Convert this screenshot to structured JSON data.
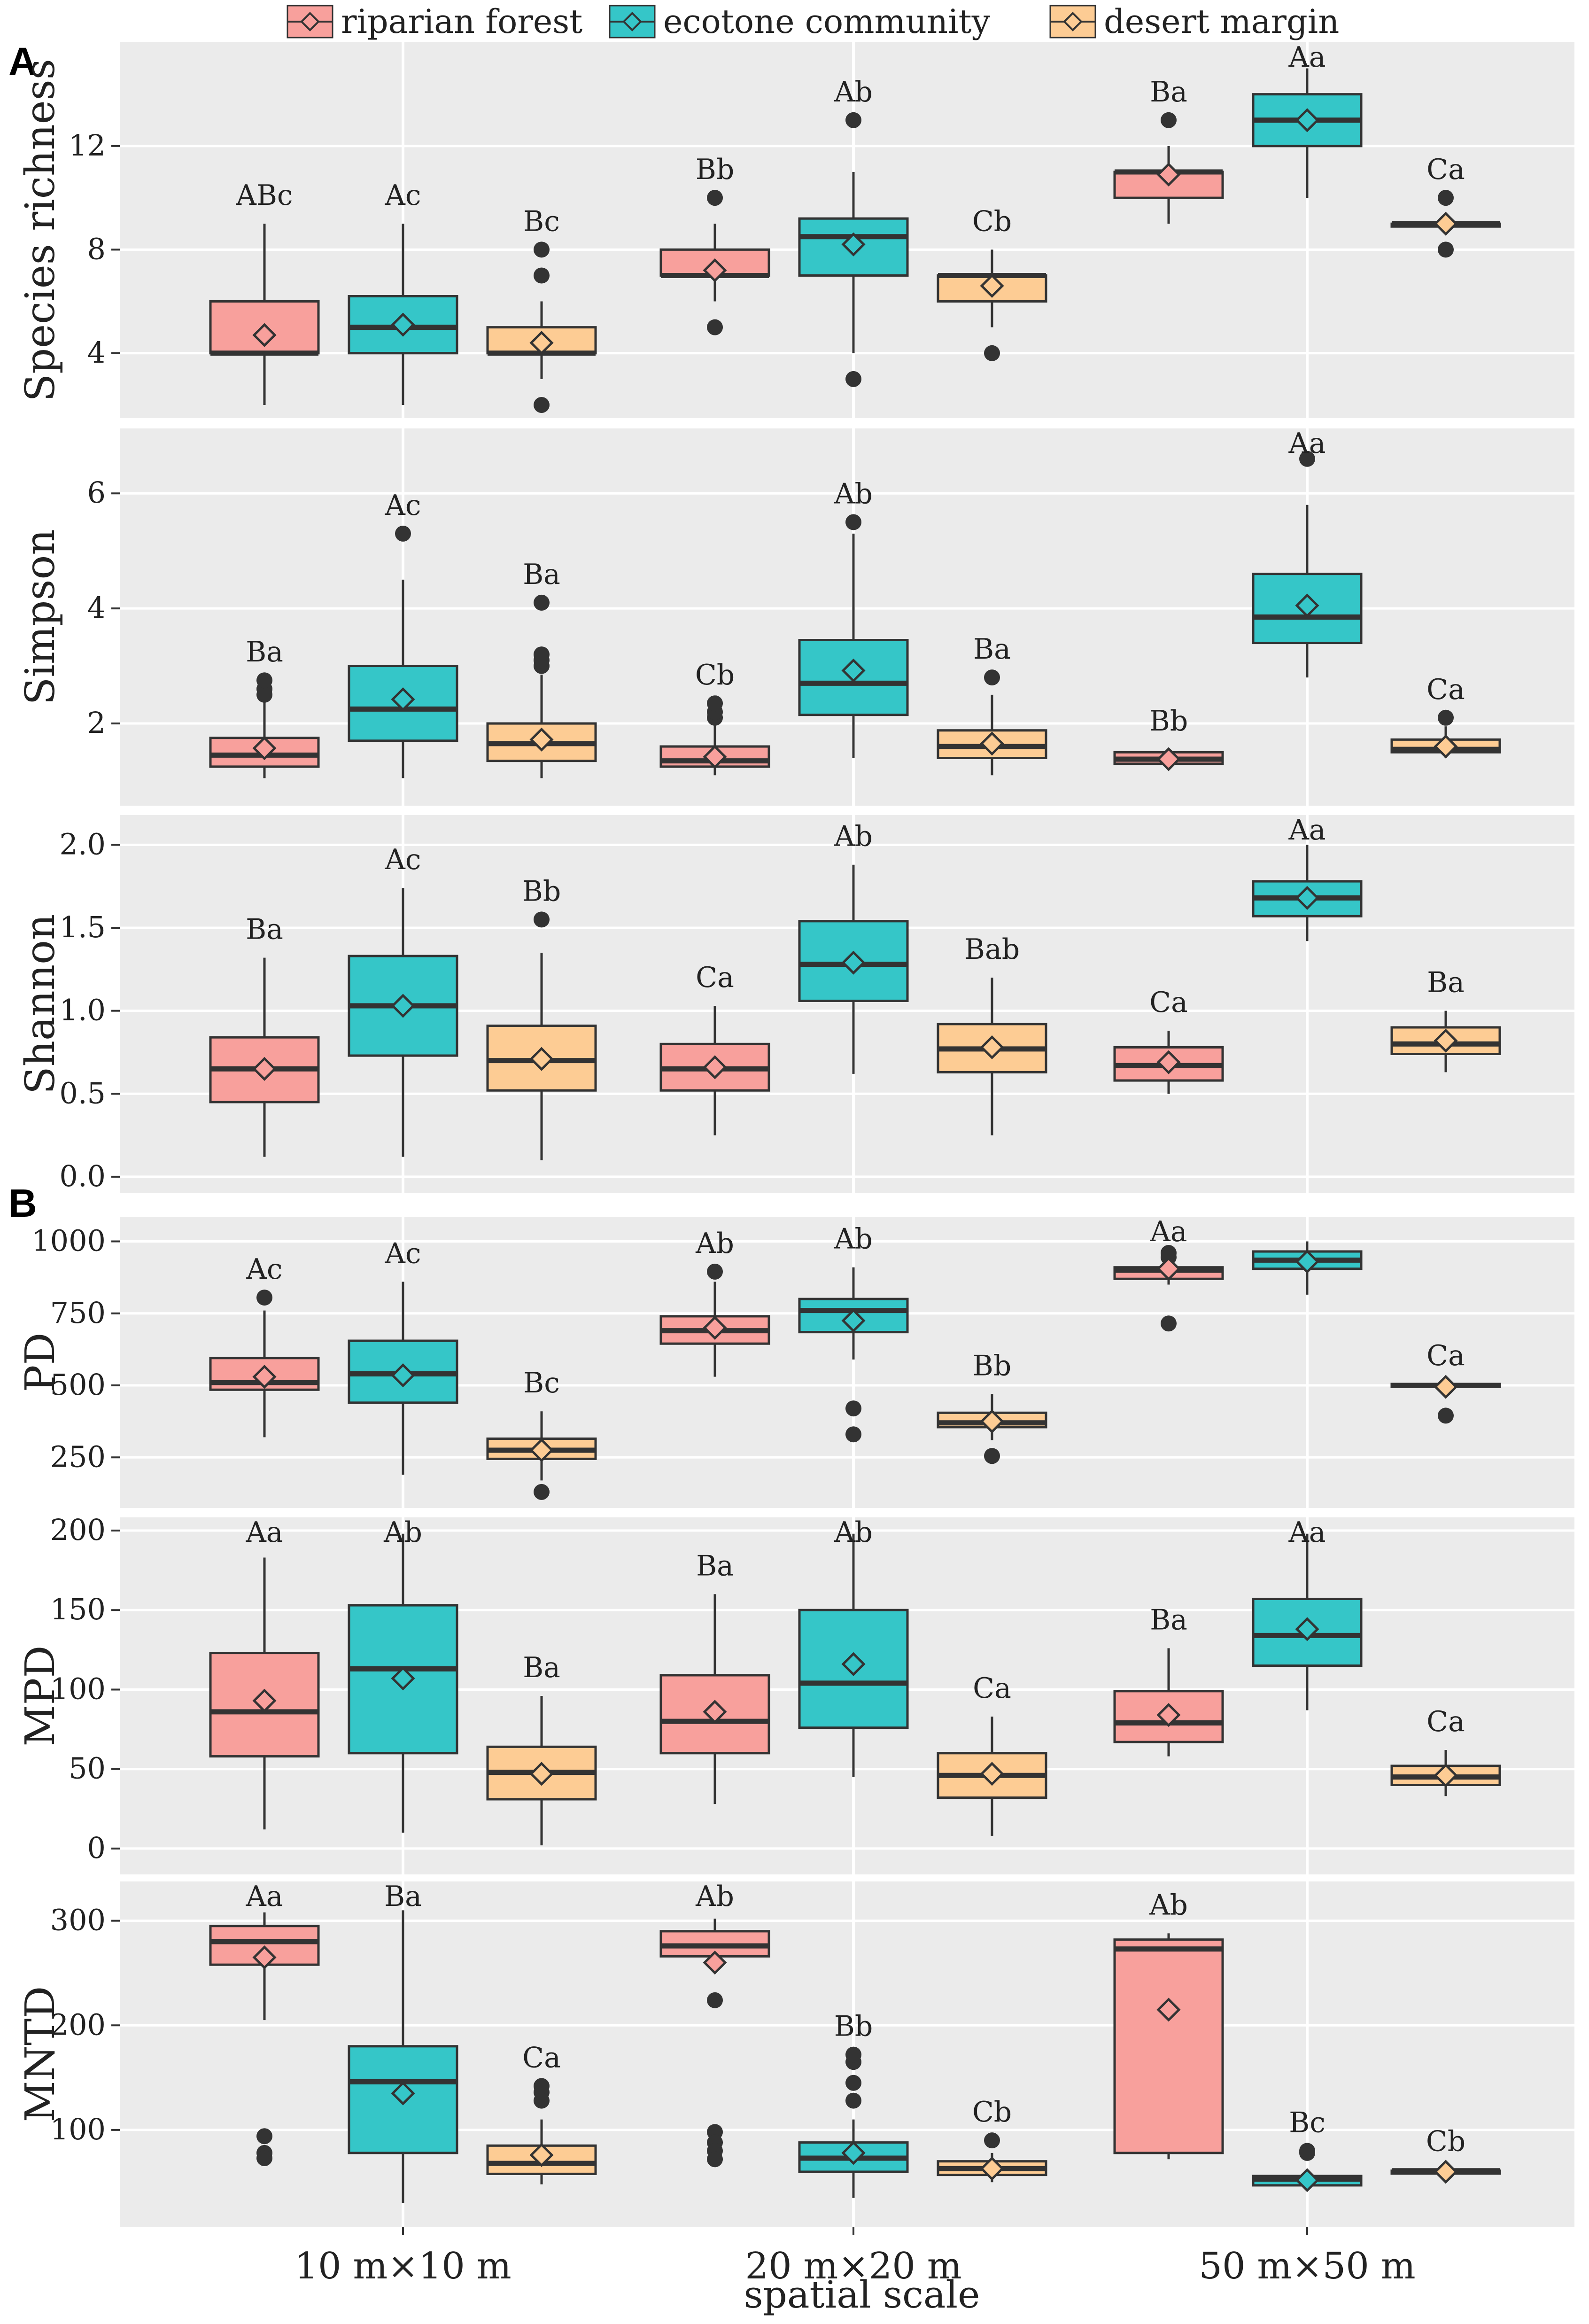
{
  "legend": [
    {
      "name": "riparian forest",
      "color": "#F8A09C"
    },
    {
      "name": "ecotone community",
      "color": "#35C6C8"
    },
    {
      "name": "desert margin",
      "color": "#FDCC94"
    }
  ],
  "panel_labels": [
    "A",
    "B"
  ],
  "xlabel": "spatial scale",
  "chart_data": {
    "type": "box",
    "categories": [
      "10 m×10 m",
      "20 m×20 m",
      "50 m×50 m"
    ],
    "groups": [
      "riparian forest",
      "ecotone community",
      "desert margin"
    ],
    "colors": [
      "#F8A09C",
      "#35C6C8",
      "#FDCC94"
    ],
    "panels": [
      {
        "ylabel": "Species richness",
        "ylim": [
          2,
          15.5
        ],
        "yticks": [
          4,
          8,
          12
        ],
        "ytick_labels": [
          "4",
          "8",
          "12"
        ],
        "boxes": [
          [
            {
              "min": 2,
              "q1": 4,
              "median": 4,
              "q3": 6,
              "max": 9,
              "mean": 4.7,
              "outliers": [],
              "label": "ABc"
            },
            {
              "min": 2,
              "q1": 4,
              "median": 5,
              "q3": 6.2,
              "max": 9,
              "mean": 5.1,
              "outliers": [],
              "label": "Ac"
            },
            {
              "min": 3,
              "q1": 4,
              "median": 4,
              "q3": 5,
              "max": 6,
              "mean": 4.4,
              "outliers": [
                7,
                8,
                2
              ],
              "label": "Bc"
            }
          ],
          [
            {
              "min": 6,
              "q1": 7,
              "median": 7,
              "q3": 8,
              "max": 9,
              "mean": 7.2,
              "outliers": [
                10,
                5
              ],
              "label": "Bb"
            },
            {
              "min": 4,
              "q1": 7,
              "median": 8.5,
              "q3": 9.2,
              "max": 11,
              "mean": 8.2,
              "outliers": [
                13,
                3
              ],
              "label": "Ab"
            },
            {
              "min": 5,
              "q1": 6,
              "median": 7,
              "q3": 7,
              "max": 8,
              "mean": 6.6,
              "outliers": [
                4
              ],
              "label": "Cb"
            }
          ],
          [
            {
              "min": 9,
              "q1": 10,
              "median": 11,
              "q3": 11,
              "max": 12,
              "mean": 10.9,
              "outliers": [
                13
              ],
              "label": "Ba"
            },
            {
              "min": 10,
              "q1": 12,
              "median": 13,
              "q3": 14,
              "max": 15,
              "mean": 13,
              "outliers": [],
              "label": "Aa"
            },
            {
              "min": 9,
              "q1": 9,
              "median": 9,
              "q3": 9,
              "max": 9,
              "mean": 9,
              "outliers": [
                10,
                8
              ],
              "label": "Ca"
            }
          ]
        ]
      },
      {
        "ylabel": "Simpson",
        "ylim": [
          0.8,
          6.9
        ],
        "yticks": [
          2,
          4,
          6
        ],
        "ytick_labels": [
          "2",
          "4",
          "6"
        ],
        "boxes": [
          [
            {
              "min": 1.05,
              "q1": 1.25,
              "median": 1.45,
              "q3": 1.75,
              "max": 2.4,
              "mean": 1.57,
              "outliers": [
                2.5,
                2.6,
                2.75
              ],
              "label": "Ba"
            },
            {
              "min": 1.05,
              "q1": 1.7,
              "median": 2.25,
              "q3": 3.0,
              "max": 4.5,
              "mean": 2.42,
              "outliers": [
                5.3
              ],
              "label": "Ac"
            },
            {
              "min": 1.05,
              "q1": 1.35,
              "median": 1.65,
              "q3": 2.0,
              "max": 2.85,
              "mean": 1.72,
              "outliers": [
                3.0,
                3.1,
                3.2,
                4.1
              ],
              "label": "Ba"
            }
          ],
          [
            {
              "min": 1.1,
              "q1": 1.25,
              "median": 1.35,
              "q3": 1.6,
              "max": 2.0,
              "mean": 1.42,
              "outliers": [
                2.1,
                2.2,
                2.35
              ],
              "label": "Cb"
            },
            {
              "min": 1.4,
              "q1": 2.15,
              "median": 2.7,
              "q3": 3.45,
              "max": 5.3,
              "mean": 2.92,
              "outliers": [
                5.5
              ],
              "label": "Ab"
            },
            {
              "min": 1.1,
              "q1": 1.4,
              "median": 1.6,
              "q3": 1.88,
              "max": 2.5,
              "mean": 1.65,
              "outliers": [
                2.8
              ],
              "label": "Ba"
            }
          ],
          [
            {
              "min": 1.25,
              "q1": 1.3,
              "median": 1.38,
              "q3": 1.5,
              "max": 1.55,
              "mean": 1.38,
              "outliers": [],
              "label": "Bb"
            },
            {
              "min": 2.8,
              "q1": 3.4,
              "median": 3.85,
              "q3": 4.6,
              "max": 5.8,
              "mean": 4.05,
              "outliers": [
                6.6
              ],
              "label": "Aa"
            },
            {
              "min": 1.4,
              "q1": 1.5,
              "median": 1.55,
              "q3": 1.72,
              "max": 1.95,
              "mean": 1.6,
              "outliers": [
                2.1
              ],
              "label": "Ca"
            }
          ]
        ]
      },
      {
        "ylabel": "Shannon",
        "ylim": [
          -0.02,
          2.1
        ],
        "yticks": [
          0.0,
          0.5,
          1.0,
          1.5,
          2.0
        ],
        "ytick_labels": [
          "0.0",
          "0.5",
          "1.0",
          "1.5",
          "2.0"
        ],
        "boxes": [
          [
            {
              "min": 0.12,
              "q1": 0.45,
              "median": 0.65,
              "q3": 0.84,
              "max": 1.32,
              "mean": 0.65,
              "outliers": [],
              "label": "Ba"
            },
            {
              "min": 0.12,
              "q1": 0.73,
              "median": 1.03,
              "q3": 1.33,
              "max": 1.74,
              "mean": 1.03,
              "outliers": [],
              "label": "Ac"
            },
            {
              "min": 0.1,
              "q1": 0.52,
              "median": 0.7,
              "q3": 0.91,
              "max": 1.35,
              "mean": 0.71,
              "outliers": [
                1.55
              ],
              "label": "Bb"
            }
          ],
          [
            {
              "min": 0.25,
              "q1": 0.52,
              "median": 0.65,
              "q3": 0.8,
              "max": 1.03,
              "mean": 0.66,
              "outliers": [],
              "label": "Ca"
            },
            {
              "min": 0.62,
              "q1": 1.06,
              "median": 1.28,
              "q3": 1.54,
              "max": 1.88,
              "mean": 1.29,
              "outliers": [],
              "label": "Ab"
            },
            {
              "min": 0.25,
              "q1": 0.63,
              "median": 0.77,
              "q3": 0.92,
              "max": 1.2,
              "mean": 0.78,
              "outliers": [],
              "label": "Bab"
            }
          ],
          [
            {
              "min": 0.5,
              "q1": 0.58,
              "median": 0.67,
              "q3": 0.78,
              "max": 0.88,
              "mean": 0.69,
              "outliers": [],
              "label": "Ca"
            },
            {
              "min": 1.42,
              "q1": 1.57,
              "median": 1.68,
              "q3": 1.78,
              "max": 2.0,
              "mean": 1.68,
              "outliers": [],
              "label": "Aa"
            },
            {
              "min": 0.63,
              "q1": 0.74,
              "median": 0.8,
              "q3": 0.9,
              "max": 1.0,
              "mean": 0.82,
              "outliers": [],
              "label": "Ba"
            }
          ]
        ]
      },
      {
        "ylabel": "PD",
        "ylim": [
          120,
          1040
        ],
        "yticks": [
          250,
          500,
          750,
          1000
        ],
        "ytick_labels": [
          "250",
          "500",
          "750",
          "1000"
        ],
        "boxes": [
          [
            {
              "min": 320,
              "q1": 485,
              "median": 510,
              "q3": 595,
              "max": 760,
              "mean": 530,
              "outliers": [
                805
              ],
              "label": "Ac"
            },
            {
              "min": 190,
              "q1": 440,
              "median": 540,
              "q3": 655,
              "max": 860,
              "mean": 535,
              "outliers": [],
              "label": "Ac"
            },
            {
              "min": 170,
              "q1": 245,
              "median": 275,
              "q3": 315,
              "max": 410,
              "mean": 275,
              "outliers": [
                130
              ],
              "label": "Bc"
            }
          ],
          [
            {
              "min": 530,
              "q1": 645,
              "median": 690,
              "q3": 740,
              "max": 860,
              "mean": 700,
              "outliers": [
                895
              ],
              "label": "Ab"
            },
            {
              "min": 590,
              "q1": 685,
              "median": 760,
              "q3": 800,
              "max": 910,
              "mean": 725,
              "outliers": [
                420,
                330
              ],
              "label": "Ab"
            },
            {
              "min": 310,
              "q1": 355,
              "median": 370,
              "q3": 405,
              "max": 470,
              "mean": 375,
              "outliers": [
                255
              ],
              "label": "Bb"
            }
          ],
          [
            {
              "min": 850,
              "q1": 870,
              "median": 900,
              "q3": 910,
              "max": 940,
              "mean": 905,
              "outliers": [
                960,
                945,
                715
              ],
              "label": "Aa"
            },
            {
              "min": 815,
              "q1": 905,
              "median": 935,
              "q3": 965,
              "max": 1000,
              "mean": 930,
              "outliers": [],
              "label": ""
            },
            {
              "min": 500,
              "q1": 500,
              "median": 500,
              "q3": 505,
              "max": 505,
              "mean": 495,
              "outliers": [
                395
              ],
              "label": "Ca"
            }
          ]
        ]
      },
      {
        "ylabel": "MPD",
        "ylim": [
          -8,
          200
        ],
        "yticks": [
          0,
          50,
          100,
          150,
          200
        ],
        "ytick_labels": [
          "0",
          "50",
          "100",
          "150",
          "200"
        ],
        "boxes": [
          [
            {
              "min": 12,
              "q1": 58,
              "median": 86,
              "q3": 123,
              "max": 183,
              "mean": 93,
              "outliers": [],
              "label": "Aa"
            },
            {
              "min": 10,
              "q1": 60,
              "median": 113,
              "q3": 153,
              "max": 198,
              "mean": 107,
              "outliers": [],
              "label": "Ab"
            },
            {
              "min": 2,
              "q1": 31,
              "median": 48,
              "q3": 64,
              "max": 96,
              "mean": 47,
              "outliers": [],
              "label": "Ba"
            }
          ],
          [
            {
              "min": 28,
              "q1": 60,
              "median": 80,
              "q3": 109,
              "max": 160,
              "mean": 86,
              "outliers": [],
              "label": "Ba"
            },
            {
              "min": 45,
              "q1": 76,
              "median": 104,
              "q3": 150,
              "max": 198,
              "mean": 116,
              "outliers": [],
              "label": "Ab"
            },
            {
              "min": 8,
              "q1": 32,
              "median": 46,
              "q3": 60,
              "max": 83,
              "mean": 47,
              "outliers": [],
              "label": "Ca"
            }
          ],
          [
            {
              "min": 58,
              "q1": 67,
              "median": 79,
              "q3": 99,
              "max": 126,
              "mean": 84,
              "outliers": [],
              "label": "Ba"
            },
            {
              "min": 87,
              "q1": 115,
              "median": 134,
              "q3": 157,
              "max": 198,
              "mean": 138,
              "outliers": [],
              "label": "Aa"
            },
            {
              "min": 33,
              "q1": 40,
              "median": 45,
              "q3": 52,
              "max": 62,
              "mean": 46,
              "outliers": [],
              "label": "Ca"
            }
          ]
        ]
      },
      {
        "ylabel": "MNTD",
        "ylim": [
          20,
          325
        ],
        "yticks": [
          100,
          200,
          300
        ],
        "ytick_labels": [
          "100",
          "200",
          "300"
        ],
        "boxes": [
          [
            {
              "min": 205,
              "q1": 258,
              "median": 280,
              "q3": 295,
              "max": 308,
              "mean": 265,
              "outliers": [
                94,
                78,
                73
              ],
              "label": "Aa"
            },
            {
              "min": 30,
              "q1": 78,
              "median": 146,
              "q3": 180,
              "max": 310,
              "mean": 135,
              "outliers": [],
              "label": "Ba"
            },
            {
              "min": 48,
              "q1": 58,
              "median": 68,
              "q3": 85,
              "max": 110,
              "mean": 76,
              "outliers": [
                128,
                136,
                142
              ],
              "label": "Ca"
            }
          ],
          [
            {
              "min": 250,
              "q1": 266,
              "median": 276,
              "q3": 290,
              "max": 302,
              "mean": 260,
              "outliers": [
                224,
                98,
                88,
                80,
                72
              ],
              "label": "Ab"
            },
            {
              "min": 35,
              "q1": 60,
              "median": 73,
              "q3": 88,
              "max": 110,
              "mean": 78,
              "outliers": [
                128,
                145,
                165,
                172
              ],
              "label": "Bb"
            },
            {
              "min": 50,
              "q1": 57,
              "median": 63,
              "q3": 70,
              "max": 78,
              "mean": 63,
              "outliers": [
                90
              ],
              "label": "Cb"
            }
          ],
          [
            {
              "min": 72,
              "q1": 78,
              "median": 273,
              "q3": 282,
              "max": 288,
              "mean": 215,
              "outliers": [],
              "label": "Ab"
            },
            {
              "min": 45,
              "q1": 47,
              "median": 53,
              "q3": 56,
              "max": 62,
              "mean": 52,
              "outliers": [
                80,
                78
              ],
              "label": "Bc"
            },
            {
              "min": 59,
              "q1": 59,
              "median": 61,
              "q3": 61,
              "max": 62,
              "mean": 60,
              "outliers": [],
              "label": "Cb"
            }
          ]
        ]
      }
    ]
  }
}
